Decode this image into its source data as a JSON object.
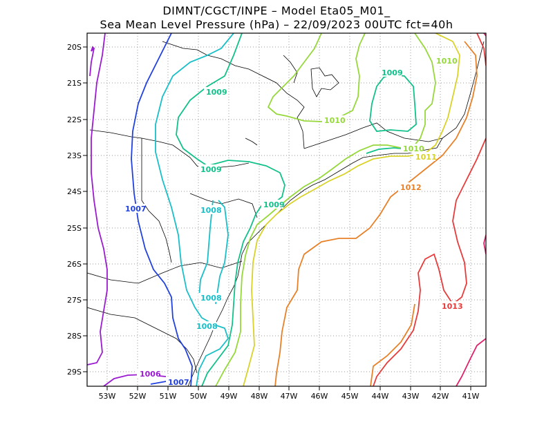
{
  "header": {
    "title_line1": "DIMNT/CGCT/INPE –  Model Eta05_M01_",
    "title_line2": "Sea Mean Level Pressure (hPa) – 22/09/2023 00UTC fct=40h"
  },
  "axes": {
    "lon_labels": [
      "53W",
      "52W",
      "51W",
      "50W",
      "49W",
      "48W",
      "47W",
      "46W",
      "45W",
      "44W",
      "43W",
      "42W",
      "41W"
    ],
    "lat_labels": [
      "20S",
      "21S",
      "22S",
      "23S",
      "24S",
      "25S",
      "26S",
      "27S",
      "28S",
      "29S"
    ]
  },
  "contour_labels": [
    {
      "text": "1006",
      "color": "#9a1ad0"
    },
    {
      "text": "1007",
      "color": "#2040e0"
    },
    {
      "text": "1007",
      "color": "#2040e0"
    },
    {
      "text": "1008",
      "color": "#19bfc8"
    },
    {
      "text": "1008",
      "color": "#19bfc8"
    },
    {
      "text": "1008",
      "color": "#19bfc8"
    },
    {
      "text": "1009",
      "color": "#12c08a"
    },
    {
      "text": "1009",
      "color": "#12c08a"
    },
    {
      "text": "1009",
      "color": "#12c08a"
    },
    {
      "text": "1009",
      "color": "#12c08a"
    },
    {
      "text": "1010",
      "color": "#96d83a"
    },
    {
      "text": "1010",
      "color": "#96d83a"
    },
    {
      "text": "1010",
      "color": "#96d83a"
    },
    {
      "text": "1011",
      "color": "#d8d22a"
    },
    {
      "text": "1012",
      "color": "#e88028"
    },
    {
      "text": "1013",
      "color": "#e83a3a"
    }
  ],
  "colors": {
    "c1005": "#9a1ad0",
    "c1006": "#9a1ad0",
    "c1007": "#2040e0",
    "c1008": "#19bfc8",
    "c1009": "#12c08a",
    "c1010": "#96d83a",
    "c1011": "#d8d22a",
    "c1012": "#e88028",
    "c1013": "#e83a3a",
    "c1014": "#e0206a"
  }
}
